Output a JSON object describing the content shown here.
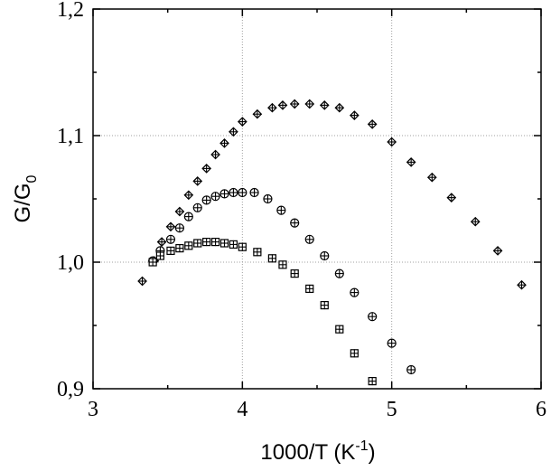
{
  "chart_data": {
    "type": "scatter",
    "xlim": [
      3,
      6
    ],
    "ylim": [
      0.9,
      1.2
    ],
    "x_ticks": [
      3,
      4,
      5,
      6
    ],
    "y_ticks": [
      0.9,
      1.0,
      1.1,
      1.2
    ],
    "x_tick_labels": [
      "3",
      "4",
      "5",
      "6"
    ],
    "y_tick_labels": [
      "0,9",
      "1,0",
      "1,1",
      "1,2"
    ],
    "xlabel": {
      "main": "1000/T (K",
      "sup": "-1",
      "close": ")"
    },
    "ylabel": {
      "main": "G/G",
      "sub": "0"
    },
    "grid": true,
    "series": [
      {
        "marker": "diamond-plus",
        "x": [
          3.33,
          3.41,
          3.46,
          3.52,
          3.58,
          3.64,
          3.7,
          3.76,
          3.82,
          3.88,
          3.94,
          4.0,
          4.1,
          4.2,
          4.27,
          4.35,
          4.45,
          4.55,
          4.65,
          4.75,
          4.87,
          5.0,
          5.13,
          5.27,
          5.4,
          5.56,
          5.71,
          5.87
        ],
        "y": [
          0.985,
          1.001,
          1.016,
          1.028,
          1.04,
          1.053,
          1.064,
          1.074,
          1.085,
          1.094,
          1.103,
          1.111,
          1.117,
          1.122,
          1.124,
          1.125,
          1.125,
          1.124,
          1.122,
          1.116,
          1.109,
          1.095,
          1.079,
          1.067,
          1.051,
          1.032,
          1.009,
          0.982
        ]
      },
      {
        "marker": "circle-plus",
        "x": [
          3.4,
          3.45,
          3.52,
          3.58,
          3.64,
          3.7,
          3.76,
          3.82,
          3.88,
          3.94,
          4.0,
          4.08,
          4.17,
          4.26,
          4.35,
          4.45,
          4.55,
          4.65,
          4.75,
          4.87,
          5.0,
          5.13
        ],
        "y": [
          1.001,
          1.009,
          1.018,
          1.027,
          1.036,
          1.043,
          1.049,
          1.052,
          1.054,
          1.055,
          1.055,
          1.055,
          1.05,
          1.041,
          1.031,
          1.018,
          1.005,
          0.991,
          0.976,
          0.957,
          0.936,
          0.915
        ]
      },
      {
        "marker": "square-plus",
        "x": [
          3.4,
          3.45,
          3.52,
          3.58,
          3.64,
          3.7,
          3.76,
          3.82,
          3.88,
          3.94,
          4.0,
          4.1,
          4.2,
          4.27,
          4.35,
          4.45,
          4.55,
          4.65,
          4.75,
          4.87
        ],
        "y": [
          1.0,
          1.005,
          1.009,
          1.011,
          1.013,
          1.015,
          1.016,
          1.016,
          1.015,
          1.014,
          1.012,
          1.008,
          1.003,
          0.998,
          0.991,
          0.979,
          0.966,
          0.947,
          0.928,
          0.906
        ]
      }
    ]
  }
}
